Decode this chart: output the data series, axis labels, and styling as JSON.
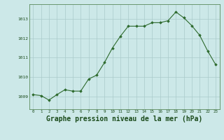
{
  "x": [
    0,
    1,
    2,
    3,
    4,
    5,
    6,
    7,
    8,
    9,
    10,
    11,
    12,
    13,
    14,
    15,
    16,
    17,
    18,
    19,
    20,
    21,
    22,
    23
  ],
  "y": [
    1009.1,
    1009.05,
    1008.82,
    1009.1,
    1009.35,
    1009.28,
    1009.28,
    1009.9,
    1010.1,
    1010.75,
    1011.5,
    1012.1,
    1012.62,
    1012.62,
    1012.62,
    1012.8,
    1012.8,
    1012.9,
    1013.35,
    1013.05,
    1012.65,
    1012.15,
    1011.35,
    1010.65
  ],
  "line_color": "#2d6a2d",
  "marker_color": "#2d6a2d",
  "bg_color": "#cce8e8",
  "grid_color": "#aacaca",
  "xlabel": "Graphe pression niveau de la mer (hPa)",
  "xlabel_fontsize": 7,
  "ytick_labels": [
    "1009",
    "1010",
    "1011",
    "1012",
    "1013"
  ],
  "ytick_values": [
    1009,
    1010,
    1011,
    1012,
    1013
  ],
  "ylim": [
    1008.35,
    1013.75
  ],
  "xlim": [
    -0.5,
    23.5
  ],
  "xtick_values": [
    0,
    1,
    2,
    3,
    4,
    5,
    6,
    7,
    8,
    9,
    10,
    11,
    12,
    13,
    14,
    15,
    16,
    17,
    18,
    19,
    20,
    21,
    22,
    23
  ],
  "label_color": "#1a4a1a"
}
